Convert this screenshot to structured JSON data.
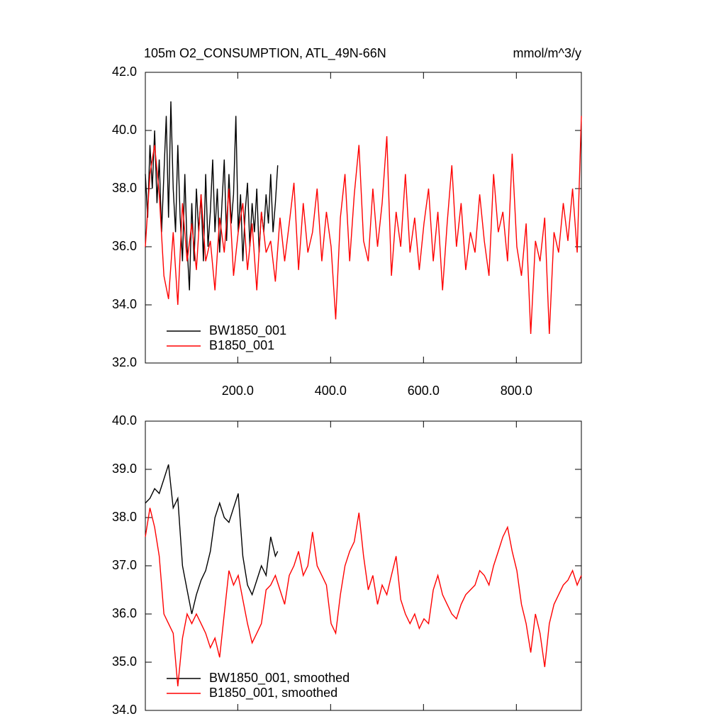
{
  "chart_data": [
    {
      "type": "line",
      "title": "105m O2_CONSUMPTION, ATL_49N-66N",
      "right_title": "mmol/m^3/y",
      "xlim": [
        1,
        940
      ],
      "ylim": [
        32,
        42
      ],
      "xticks": [
        {
          "value": 200,
          "label": "200.0"
        },
        {
          "value": 400,
          "label": "400.0"
        },
        {
          "value": 600,
          "label": "600.0"
        },
        {
          "value": 800,
          "label": "800.0"
        }
      ],
      "yticks": [
        {
          "value": 32,
          "label": "32.0"
        },
        {
          "value": 34,
          "label": "34.0"
        },
        {
          "value": 36,
          "label": "36.0"
        },
        {
          "value": 38,
          "label": "38.0"
        },
        {
          "value": 40,
          "label": "40.0"
        },
        {
          "value": 42,
          "label": "42.0"
        }
      ],
      "legend": "lower left",
      "series": [
        {
          "name": "BW1850_001",
          "color": "#000000",
          "x": [
            1,
            6,
            11,
            16,
            21,
            26,
            31,
            36,
            41,
            46,
            51,
            56,
            61,
            66,
            71,
            76,
            81,
            86,
            91,
            96,
            101,
            106,
            111,
            116,
            121,
            126,
            131,
            136,
            141,
            146,
            151,
            156,
            161,
            166,
            171,
            176,
            181,
            186,
            191,
            196,
            201,
            206,
            211,
            216,
            221,
            226,
            231,
            236,
            241,
            246,
            251,
            256,
            261,
            266,
            271,
            276,
            281,
            286
          ],
          "values": [
            38.5,
            37.0,
            39.5,
            38.0,
            40.0,
            37.5,
            39.0,
            36.5,
            38.5,
            40.5,
            37.0,
            41.0,
            38.0,
            36.5,
            39.5,
            37.0,
            35.5,
            38.5,
            36.0,
            34.5,
            37.5,
            35.5,
            38.0,
            36.5,
            37.8,
            35.5,
            38.5,
            36.0,
            37.2,
            39.0,
            36.5,
            38.0,
            35.8,
            37.5,
            39.0,
            36.2,
            38.5,
            36.8,
            37.8,
            40.5,
            36.5,
            37.8,
            35.5,
            37.2,
            38.2,
            36.0,
            37.5,
            36.5,
            38.0,
            35.8,
            37.2,
            36.5,
            37.8,
            36.8,
            38.5,
            36.5,
            37.5,
            38.8
          ]
        },
        {
          "name": "B1850_001",
          "color": "#ff0000",
          "x": [
            1,
            11,
            21,
            31,
            41,
            51,
            61,
            71,
            81,
            91,
            101,
            111,
            121,
            131,
            141,
            151,
            161,
            171,
            181,
            191,
            201,
            211,
            221,
            231,
            241,
            251,
            261,
            271,
            281,
            291,
            301,
            311,
            321,
            331,
            341,
            351,
            361,
            371,
            381,
            391,
            401,
            411,
            421,
            431,
            441,
            451,
            461,
            471,
            481,
            491,
            501,
            511,
            521,
            531,
            541,
            551,
            561,
            571,
            581,
            591,
            601,
            611,
            621,
            631,
            641,
            651,
            661,
            671,
            681,
            691,
            701,
            711,
            721,
            731,
            741,
            751,
            761,
            771,
            781,
            791,
            801,
            811,
            821,
            831,
            841,
            851,
            861,
            871,
            881,
            891,
            901,
            911,
            921,
            931,
            940
          ],
          "values": [
            36.0,
            38.5,
            39.5,
            37.8,
            35.0,
            34.2,
            36.5,
            34.0,
            37.5,
            35.5,
            36.8,
            35.2,
            37.8,
            35.5,
            36.2,
            34.5,
            37.0,
            35.8,
            38.0,
            35.0,
            36.5,
            37.5,
            35.2,
            36.8,
            34.5,
            37.2,
            35.8,
            36.2,
            34.8,
            37.0,
            35.5,
            36.8,
            38.2,
            35.2,
            37.5,
            35.8,
            36.5,
            38.0,
            35.5,
            37.2,
            36.0,
            33.5,
            37.0,
            38.5,
            35.5,
            37.8,
            39.5,
            36.2,
            35.5,
            38.0,
            36.0,
            37.5,
            39.8,
            35.0,
            37.2,
            36.0,
            38.5,
            35.8,
            37.0,
            35.2,
            36.8,
            38.0,
            35.5,
            37.2,
            34.5,
            36.8,
            38.8,
            36.0,
            37.5,
            35.2,
            36.5,
            35.8,
            37.8,
            36.2,
            35.0,
            38.5,
            36.5,
            37.2,
            35.5,
            39.2,
            36.0,
            35.0,
            36.8,
            33.0,
            36.2,
            35.5,
            37.0,
            33.0,
            36.5,
            35.8,
            37.5,
            36.2,
            38.0,
            35.8,
            40.5
          ]
        }
      ]
    },
    {
      "type": "line",
      "xlim": [
        1,
        940
      ],
      "ylim": [
        34,
        40
      ],
      "xticks": [
        200,
        400,
        600,
        800
      ],
      "yticks": [
        {
          "value": 34,
          "label": "34.0"
        },
        {
          "value": 35,
          "label": "35.0"
        },
        {
          "value": 36,
          "label": "36.0"
        },
        {
          "value": 37,
          "label": "37.0"
        },
        {
          "value": 38,
          "label": "38.0"
        },
        {
          "value": 39,
          "label": "39.0"
        },
        {
          "value": 40,
          "label": "40.0"
        }
      ],
      "legend": "lower left",
      "series": [
        {
          "name": "BW1850_001, smoothed",
          "color": "#000000",
          "x": [
            1,
            11,
            21,
            31,
            41,
            51,
            61,
            71,
            81,
            91,
            101,
            111,
            121,
            131,
            141,
            151,
            161,
            171,
            181,
            191,
            201,
            211,
            221,
            231,
            241,
            251,
            261,
            271,
            281,
            286
          ],
          "values": [
            38.3,
            38.4,
            38.6,
            38.5,
            38.8,
            39.1,
            38.2,
            38.4,
            37.0,
            36.5,
            36.0,
            36.4,
            36.7,
            36.9,
            37.3,
            38.0,
            38.3,
            38.0,
            37.9,
            38.2,
            38.5,
            37.2,
            36.6,
            36.4,
            36.7,
            37.0,
            36.8,
            37.6,
            37.2,
            37.3
          ]
        },
        {
          "name": "B1850_001, smoothed",
          "color": "#ff0000",
          "x": [
            1,
            11,
            21,
            31,
            41,
            51,
            61,
            71,
            81,
            91,
            101,
            111,
            121,
            131,
            141,
            151,
            161,
            171,
            181,
            191,
            201,
            211,
            221,
            231,
            241,
            251,
            261,
            271,
            281,
            291,
            301,
            311,
            321,
            331,
            341,
            351,
            361,
            371,
            381,
            391,
            401,
            411,
            421,
            431,
            441,
            451,
            461,
            471,
            481,
            491,
            501,
            511,
            521,
            531,
            541,
            551,
            561,
            571,
            581,
            591,
            601,
            611,
            621,
            631,
            641,
            651,
            661,
            671,
            681,
            691,
            701,
            711,
            721,
            731,
            741,
            751,
            761,
            771,
            781,
            791,
            801,
            811,
            821,
            831,
            841,
            851,
            861,
            871,
            881,
            891,
            901,
            911,
            921,
            931,
            940
          ],
          "values": [
            37.6,
            38.2,
            37.8,
            37.2,
            36.0,
            35.8,
            35.6,
            34.5,
            35.5,
            36.0,
            35.8,
            36.0,
            35.8,
            35.6,
            35.3,
            35.5,
            35.1,
            36.0,
            36.9,
            36.6,
            36.8,
            36.3,
            35.8,
            35.4,
            35.6,
            35.8,
            36.5,
            36.6,
            36.8,
            36.5,
            36.2,
            36.8,
            37.0,
            37.3,
            36.8,
            37.0,
            37.7,
            37.0,
            36.8,
            36.6,
            35.8,
            35.6,
            36.4,
            37.0,
            37.3,
            37.5,
            38.1,
            37.2,
            36.5,
            36.8,
            36.2,
            36.6,
            36.4,
            36.8,
            37.2,
            36.3,
            36.0,
            35.8,
            36.0,
            35.7,
            35.9,
            35.8,
            36.5,
            36.8,
            36.4,
            36.2,
            36.0,
            35.9,
            36.2,
            36.4,
            36.5,
            36.6,
            36.9,
            36.8,
            36.6,
            37.0,
            37.3,
            37.6,
            37.8,
            37.3,
            36.9,
            36.2,
            35.8,
            35.2,
            36.0,
            35.6,
            34.9,
            35.8,
            36.2,
            36.4,
            36.6,
            36.7,
            36.9,
            36.6,
            36.8
          ]
        }
      ]
    }
  ]
}
